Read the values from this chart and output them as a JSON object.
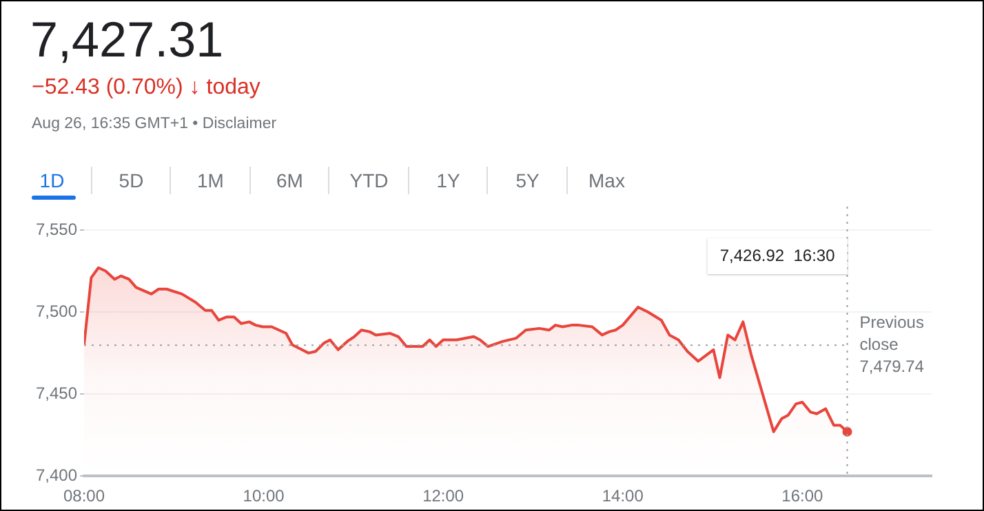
{
  "chart_data": {
    "type": "area",
    "title": "7,427.31",
    "subtitle": "−52.43 (0.70%) ↓ today",
    "annotations": [
      "Aug 26, 16:35 GMT+1 • Disclaimer",
      "1D",
      "5D",
      "1M",
      "6M",
      "YTD",
      "1Y",
      "5Y",
      "Max",
      "7,426.92  16:30"
    ],
    "x": [
      8.0,
      8.08,
      8.16,
      8.24,
      8.34,
      8.41,
      8.5,
      8.58,
      8.75,
      8.83,
      8.92,
      9.09,
      9.24,
      9.35,
      9.42,
      9.5,
      9.59,
      9.67,
      9.75,
      9.84,
      9.91,
      9.99,
      10.09,
      10.25,
      10.32,
      10.5,
      10.58,
      10.67,
      10.74,
      10.83,
      10.93,
      11.01,
      11.09,
      11.18,
      11.25,
      11.41,
      11.5,
      11.59,
      11.69,
      11.77,
      11.85,
      11.92,
      12.0,
      12.15,
      12.34,
      12.41,
      12.5,
      12.66,
      12.81,
      12.92,
      13.07,
      13.18,
      13.25,
      13.33,
      13.43,
      13.51,
      13.66,
      13.77,
      13.85,
      13.92,
      14.0,
      14.17,
      14.28,
      14.43,
      14.52,
      14.62,
      14.72,
      14.84,
      15.01,
      15.08,
      15.17,
      15.25,
      15.34,
      15.43,
      15.68,
      15.77,
      15.84,
      15.93,
      16.0,
      16.09,
      16.16,
      16.26,
      16.35,
      16.42,
      16.5
    ],
    "series": [
      {
        "color": "#e8453c",
        "values": [
          7480,
          7521,
          7527,
          7525,
          7520,
          7522,
          7520,
          7515,
          7511,
          7514,
          7514,
          7511,
          7506,
          7501,
          7501,
          7495,
          7497,
          7497,
          7493,
          7494,
          7492,
          7491,
          7491,
          7487,
          7480,
          7475,
          7476,
          7481,
          7483,
          7477,
          7482,
          7485,
          7489,
          7488,
          7486,
          7487,
          7485,
          7479,
          7479,
          7479,
          7483,
          7479,
          7483,
          7483,
          7485,
          7483,
          7479,
          7482,
          7484,
          7489,
          7490,
          7489,
          7492,
          7491,
          7492,
          7492,
          7491,
          7486,
          7488,
          7489,
          7492,
          7503,
          7500,
          7495,
          7486,
          7483,
          7476,
          7470,
          7477,
          7460,
          7486,
          7483,
          7494,
          7474,
          7427,
          7435,
          7437,
          7444,
          7445,
          7439,
          7438,
          7441,
          7431,
          7431,
          7427
        ]
      }
    ],
    "xlim": [
      8,
      17.44
    ],
    "xticks": [
      {
        "value": 8,
        "label": "08:00"
      },
      {
        "value": 10,
        "label": "10:00"
      },
      {
        "value": 12,
        "label": "12:00"
      },
      {
        "value": 14,
        "label": "14:00"
      },
      {
        "value": 16,
        "label": "16:00"
      }
    ],
    "ylim": [
      7400,
      7550
    ],
    "yticks": [
      {
        "value": 7400,
        "label": "7,400"
      },
      {
        "value": 7450,
        "label": "7,450"
      },
      {
        "value": 7500,
        "label": "7,500"
      },
      {
        "value": 7550,
        "label": "7,550"
      }
    ],
    "grid": "y",
    "legend": false,
    "marker": "none",
    "line_style": "solid",
    "ref_lines": [
      {
        "axis": "y",
        "value": 7479.74,
        "label": "Previous close 7,479.74",
        "line_style": "dotted",
        "color": "#9aa0a6"
      },
      {
        "axis": "x",
        "value": 16.5,
        "line_style": "dotted",
        "color": "#9aa0a6"
      }
    ]
  }
}
